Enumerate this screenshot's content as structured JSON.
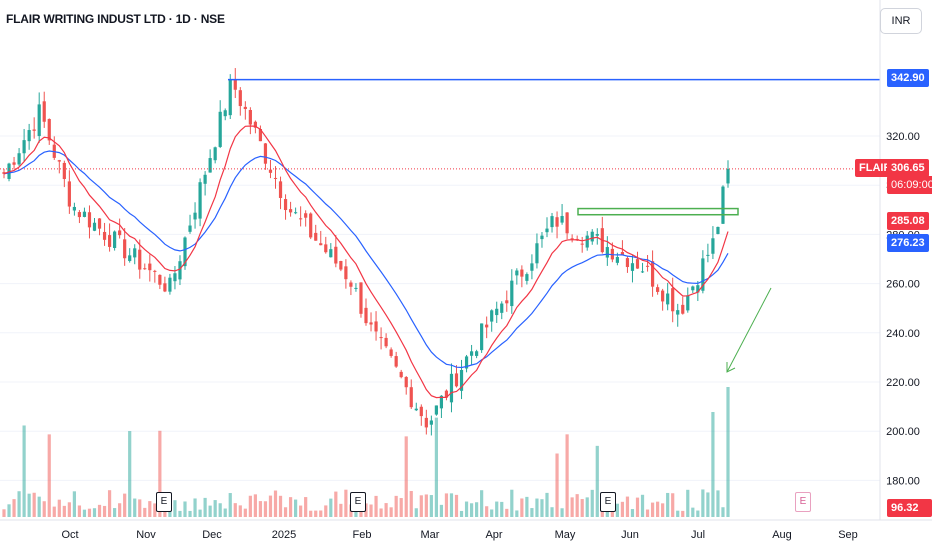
{
  "header": {
    "title": "FLAIR WRITING INDUST LTD · 1D · NSE"
  },
  "currency_button": "INR",
  "symbol_tag": "FLAIR",
  "price_labels": {
    "resistance": "342.90",
    "last": "306.65",
    "countdown": "06:09:00",
    "ema_fast": "285.08",
    "ema_slow": "276.23",
    "volume": "96.32 K"
  },
  "colors": {
    "up": "#26a69a",
    "down": "#ef5350",
    "ema_fast": "#f23645",
    "ema_slow": "#2962ff",
    "resistance": "#2962ff",
    "zone": "#4caf50",
    "arrow": "#4caf50"
  },
  "events": {
    "label": "E"
  },
  "chart_data": {
    "type": "candlestick",
    "title": "FLAIR WRITING INDUST LTD · 1D · NSE",
    "y_axis": {
      "ticks": [
        "320.00",
        "300.00",
        "280.00",
        "260.00",
        "240.00",
        "220.00",
        "200.00",
        "180.00"
      ],
      "range": [
        172,
        362
      ]
    },
    "x_axis": {
      "ticks": [
        "Oct",
        "Nov",
        "Dec",
        "2025",
        "Feb",
        "Mar",
        "Apr",
        "May",
        "Jun",
        "Jul",
        "Aug",
        "Sep"
      ]
    },
    "resistance_level": 342.9,
    "consolidation_zone": {
      "from": "May",
      "to": "Jul",
      "low": 288,
      "high": 290.5
    },
    "last_price": 306.65,
    "ema_fast_last": 285.08,
    "ema_slow_last": 276.23,
    "volume_last": "96.32 K",
    "earnings_months": [
      "Nov",
      "Feb",
      "May",
      "Aug"
    ],
    "key_closes": [
      {
        "x": "start",
        "y": 304
      },
      {
        "x": "Sep",
        "y": 330
      },
      {
        "x": "Oct",
        "y": 292
      },
      {
        "x": "Nov",
        "y": 258
      },
      {
        "x": "Dec",
        "y": 342
      },
      {
        "x": "2025",
        "y": 290
      },
      {
        "x": "Feb",
        "y": 262
      },
      {
        "x": "Feb-end",
        "y": 240
      },
      {
        "x": "Mar",
        "y": 203
      },
      {
        "x": "Apr",
        "y": 232
      },
      {
        "x": "May",
        "y": 286
      },
      {
        "x": "Jun",
        "y": 268
      },
      {
        "x": "Jun-end",
        "y": 249
      },
      {
        "x": "Jul",
        "y": 278
      },
      {
        "x": "last",
        "y": 306.65
      }
    ]
  }
}
